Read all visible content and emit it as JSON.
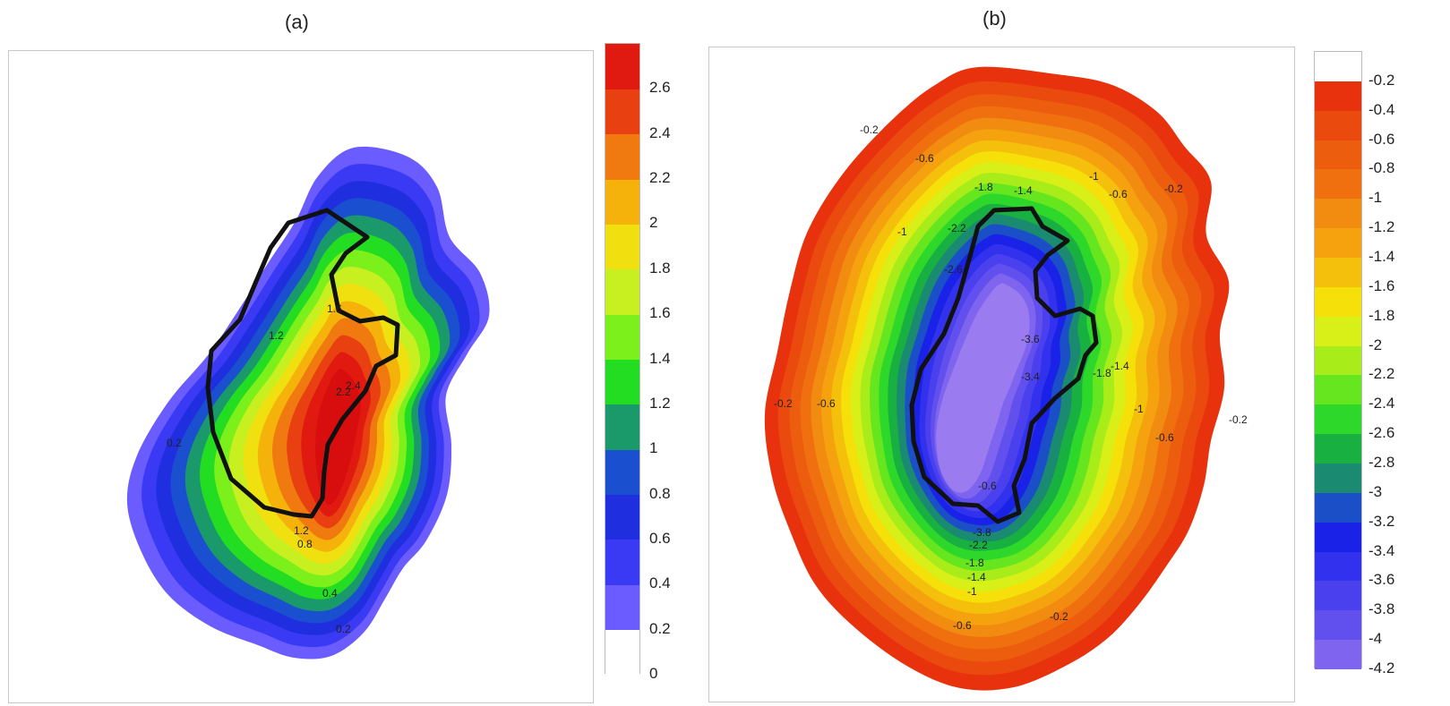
{
  "chart_data": [
    {
      "type": "heatmap",
      "panel_label": "(a)",
      "colorbar": {
        "tick_labels": [
          "0",
          "0.2",
          "0.4",
          "0.6",
          "0.8",
          "1",
          "1.2",
          "1.4",
          "1.6",
          "1.8",
          "2",
          "2.2",
          "2.4",
          "2.6"
        ],
        "levels": [
          0,
          0.2,
          0.4,
          0.6,
          0.8,
          1.0,
          1.2,
          1.4,
          1.6,
          1.8,
          2.0,
          2.2,
          2.4,
          2.6,
          2.8
        ],
        "colors": [
          "#ffffff",
          "#6a5cff",
          "#3a3af5",
          "#1f2fe0",
          "#1a4fd0",
          "#1a9a6a",
          "#22dd22",
          "#7cf01a",
          "#c8f020",
          "#f0e010",
          "#f5b20a",
          "#f07a10",
          "#e84010",
          "#e01a10",
          "#d80e0e"
        ]
      },
      "contour_labels": [
        "1.6",
        "1.2",
        "2.2",
        "2.4",
        "1.2",
        "0.8",
        "0.4",
        "0.2",
        "0.2"
      ]
    },
    {
      "type": "heatmap",
      "panel_label": "(b)",
      "colorbar": {
        "tick_labels": [
          "-0.2",
          "-0.4",
          "-0.6",
          "-0.8",
          "-1",
          "-1.2",
          "-1.4",
          "-1.6",
          "-1.8",
          "-2",
          "-2.2",
          "-2.4",
          "-2.6",
          "-2.8",
          "-3",
          "-3.2",
          "-3.4",
          "-3.6",
          "-3.8",
          "-4",
          "-4.2"
        ],
        "levels": [
          0,
          -0.2,
          -0.4,
          -0.6,
          -0.8,
          -1.0,
          -1.2,
          -1.4,
          -1.6,
          -1.8,
          -2.0,
          -2.2,
          -2.4,
          -2.6,
          -2.8,
          -3.0,
          -3.2,
          -3.4,
          -3.6,
          -3.8,
          -4.0,
          -4.2
        ],
        "colors": [
          "#ffffff",
          "#e8320e",
          "#ea4a0e",
          "#ec5e0e",
          "#f07010",
          "#f28c10",
          "#f5a20e",
          "#f5c00c",
          "#f5e00a",
          "#d8f018",
          "#a8ec1a",
          "#66e61e",
          "#2ed82a",
          "#18b040",
          "#1a8a70",
          "#1a4fc8",
          "#1a22e8",
          "#3232ee",
          "#4a40ee",
          "#6250ee",
          "#7e64ee",
          "#9a7cf0"
        ]
      },
      "contour_labels": [
        "-0.2",
        "-0.6",
        "-1.4",
        "-1.8",
        "-1",
        "-0.6",
        "-0.2",
        "-2.2",
        "-2.6",
        "-1",
        "-3.6",
        "-3.4",
        "-1.8",
        "-1.4",
        "-1",
        "-0.6",
        "-0.2",
        "-0.2",
        "-0.6",
        "-0.6",
        "-3.8",
        "-2.2",
        "-1.8",
        "-1.4",
        "-1",
        "-0.6",
        "-0.2"
      ]
    }
  ]
}
